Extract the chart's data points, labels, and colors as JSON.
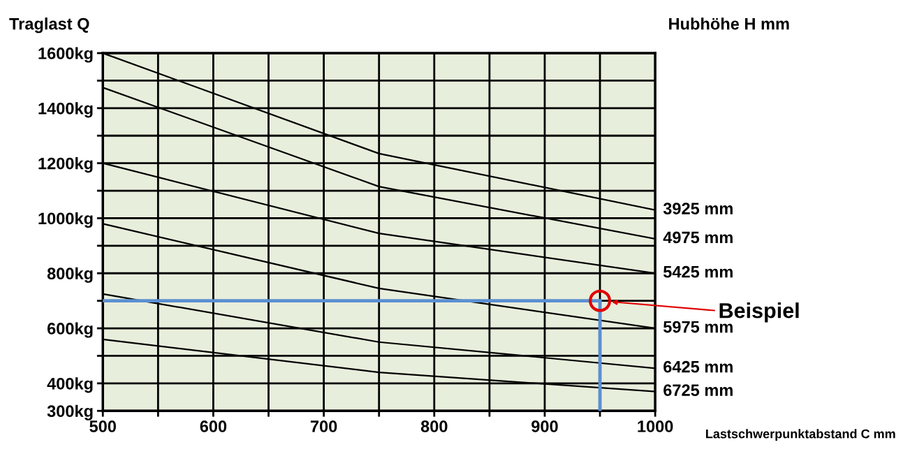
{
  "chart_data": {
    "type": "line",
    "ylabel": "Traglast Q",
    "legend_title": "Hubhöhe H mm",
    "xlabel": "Lastschwerpunktabstand C mm",
    "x": [
      500,
      750,
      1000
    ],
    "series": [
      {
        "name": "3925 mm",
        "color": "#000000",
        "values": [
          1600,
          1235,
          1030
        ]
      },
      {
        "name": "4975 mm",
        "color": "#000000",
        "values": [
          1475,
          1115,
          925
        ]
      },
      {
        "name": "5425 mm",
        "color": "#000000",
        "values": [
          1200,
          945,
          800
        ]
      },
      {
        "name": "5975 mm",
        "color": "#000000",
        "values": [
          980,
          745,
          600
        ]
      },
      {
        "name": "6425 mm",
        "color": "#000000",
        "values": [
          725,
          550,
          455
        ]
      },
      {
        "name": "6725 mm",
        "color": "#000000",
        "values": [
          560,
          440,
          370
        ]
      }
    ],
    "xlim": [
      500,
      1000
    ],
    "ylim": [
      300,
      1600
    ],
    "xticks": [
      500,
      {
        "value": 550,
        "label": null
      },
      600,
      {
        "value": 650,
        "label": null
      },
      700,
      {
        "value": 750,
        "label": null
      },
      800,
      {
        "value": 850,
        "label": null
      },
      900,
      {
        "value": 950,
        "label": null
      },
      1000
    ],
    "yticks": [
      {
        "value": 300,
        "label": "300kg"
      },
      {
        "value": 400,
        "label": "400kg"
      },
      {
        "value": 500,
        "label": null
      },
      {
        "value": 600,
        "label": "600kg"
      },
      {
        "value": 700,
        "label": null
      },
      {
        "value": 800,
        "label": "800kg"
      },
      {
        "value": 900,
        "label": null
      },
      {
        "value": 1000,
        "label": "1000kg"
      },
      {
        "value": 1100,
        "label": null
      },
      {
        "value": 1200,
        "label": "1200kg"
      },
      {
        "value": 1300,
        "label": null
      },
      {
        "value": 1400,
        "label": "1400kg"
      },
      {
        "value": 1500,
        "label": null
      },
      {
        "value": 1600,
        "label": "1600kg"
      }
    ],
    "grid": true,
    "legend": false,
    "marker": "none",
    "line_style": "solid",
    "ref_lines": [
      {
        "axis": "y",
        "value": 700,
        "color": "#5b8fd1"
      },
      {
        "axis": "x",
        "value": 950,
        "color": "#5b8fd1"
      }
    ],
    "annotations": [
      "Beispiel"
    ]
  }
}
